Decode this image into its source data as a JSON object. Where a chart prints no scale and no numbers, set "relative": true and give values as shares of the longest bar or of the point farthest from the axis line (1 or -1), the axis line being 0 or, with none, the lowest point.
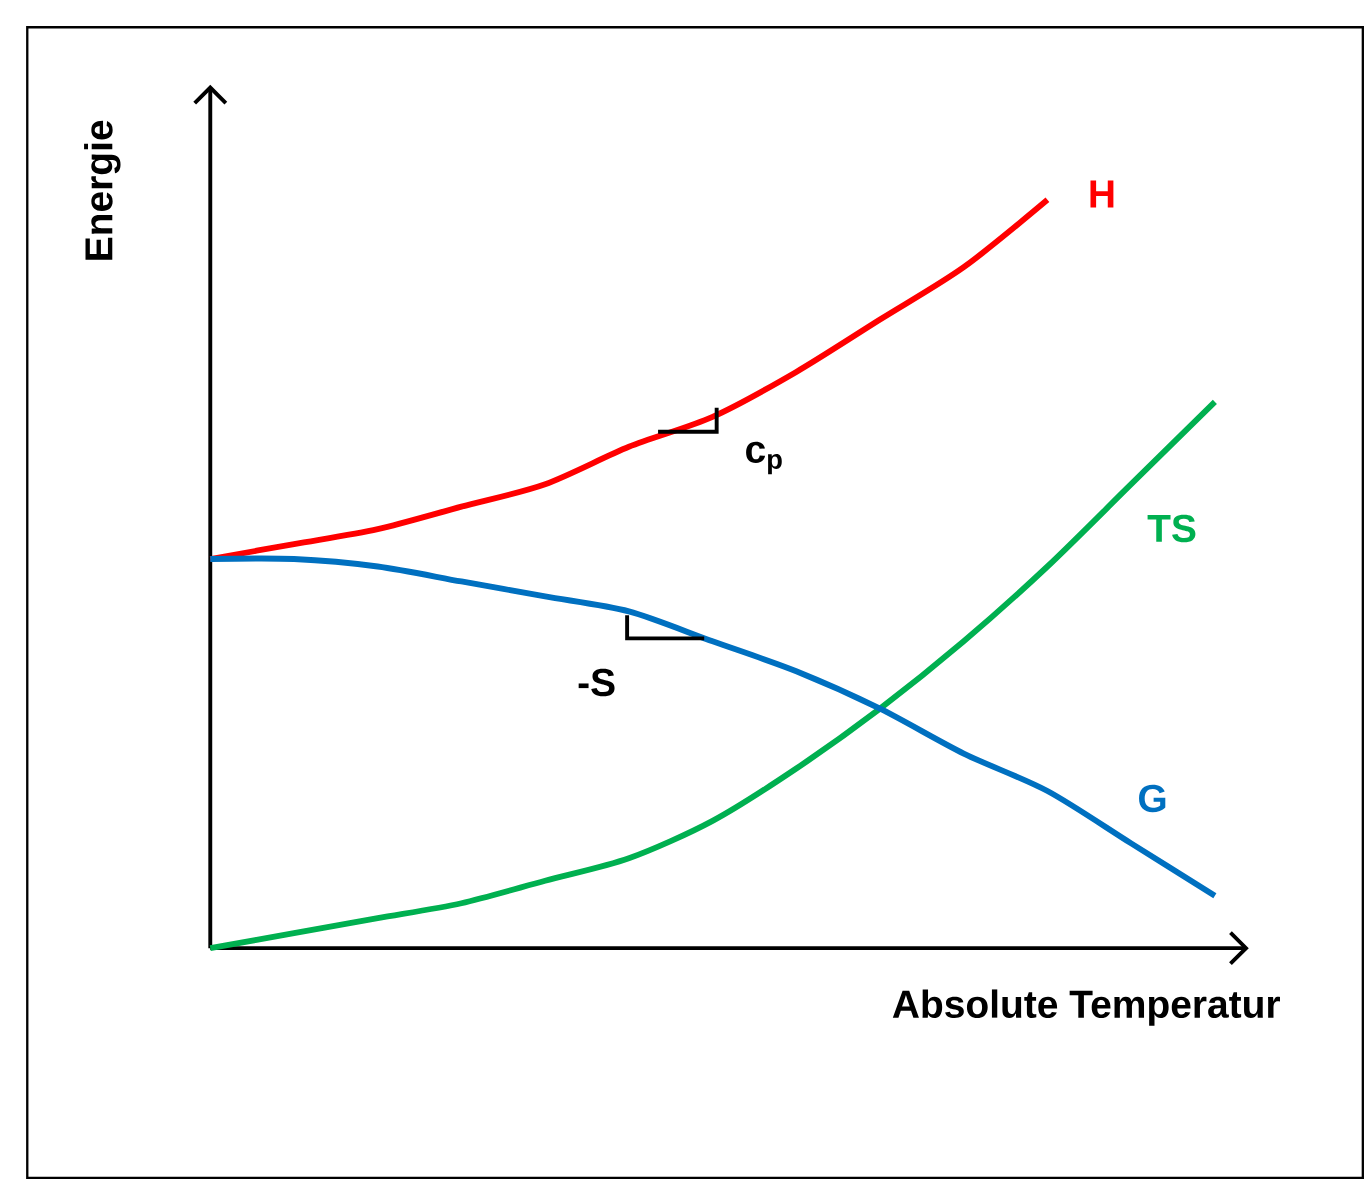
{
  "chart_data": {
    "type": "line",
    "relative": true,
    "xlabel": "Absolute Temperatur",
    "ylabel": "Energie",
    "categories": [
      null,
      null,
      null,
      null,
      null,
      null,
      null,
      null,
      null,
      null,
      null,
      null,
      null
    ],
    "series": [
      {
        "name": "H",
        "color": "#ff0000",
        "values": [
          0.52,
          0.54,
          0.56,
          0.59,
          0.62,
          0.67,
          0.71,
          0.77,
          0.84,
          0.91,
          1.0,
          null,
          null
        ]
      },
      {
        "name": "TS",
        "color": "#00b050",
        "values": [
          0,
          0.02,
          0.04,
          0.06,
          0.09,
          0.12,
          0.17,
          0.24,
          0.32,
          0.41,
          0.51,
          0.62,
          0.73
        ]
      },
      {
        "name": "G",
        "color": "#0070c0",
        "values": [
          0.52,
          0.52,
          0.51,
          0.49,
          0.47,
          0.45,
          0.41,
          0.37,
          0.32,
          0.26,
          0.21,
          0.14,
          0.07
        ]
      }
    ],
    "annotations": [
      "c$_{p}$",
      "-S"
    ],
    "marker": "none",
    "line_style": "solid"
  }
}
